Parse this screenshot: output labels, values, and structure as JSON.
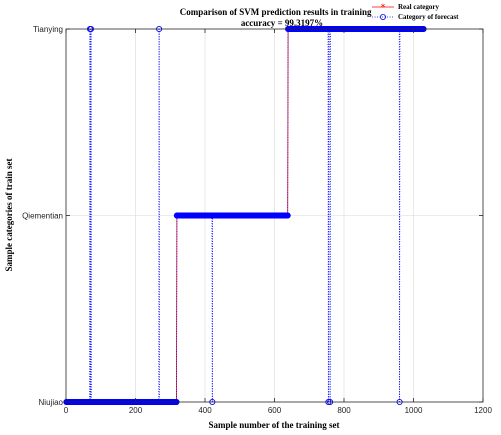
{
  "chart_data": {
    "type": "line",
    "title": "Comparison of SVM prediction results in training set",
    "subtitle": "accuracy = 99.3197%",
    "xlabel": "Sample number of the training set",
    "ylabel": "Sample categories of train set",
    "xlim": [
      0,
      1200
    ],
    "xticks": [
      0,
      200,
      400,
      600,
      800,
      1000,
      1200
    ],
    "ycategories": [
      "Niujiao",
      "Qiementian",
      "Tianying"
    ],
    "grid": true,
    "legend_position": "top-right",
    "n_samples": 1029,
    "series": [
      {
        "name": "Real category",
        "color": "#ff0000",
        "marker": "*",
        "segments": [
          {
            "x_start": 1,
            "x_end": 318,
            "category": "Niujiao"
          },
          {
            "x_start": 319,
            "x_end": 638,
            "category": "Qiementian"
          },
          {
            "x_start": 639,
            "x_end": 1029,
            "category": "Tianying"
          }
        ]
      },
      {
        "name": "Category of forecast",
        "color": "#0000ff",
        "marker": "o",
        "linestyle": "dotted",
        "base": [
          {
            "x_start": 1,
            "x_end": 318,
            "category": "Niujiao"
          },
          {
            "x_start": 319,
            "x_end": 638,
            "category": "Qiementian"
          },
          {
            "x_start": 639,
            "x_end": 1029,
            "category": "Tianying"
          }
        ],
        "misclassified": [
          {
            "x": 69,
            "category": "Tianying"
          },
          {
            "x": 72,
            "category": "Tianying"
          },
          {
            "x": 268,
            "category": "Tianying"
          },
          {
            "x": 421,
            "category": "Niujiao"
          },
          {
            "x": 755,
            "category": "Niujiao"
          },
          {
            "x": 760,
            "category": "Niujiao"
          },
          {
            "x": 960,
            "category": "Niujiao"
          }
        ]
      }
    ]
  }
}
